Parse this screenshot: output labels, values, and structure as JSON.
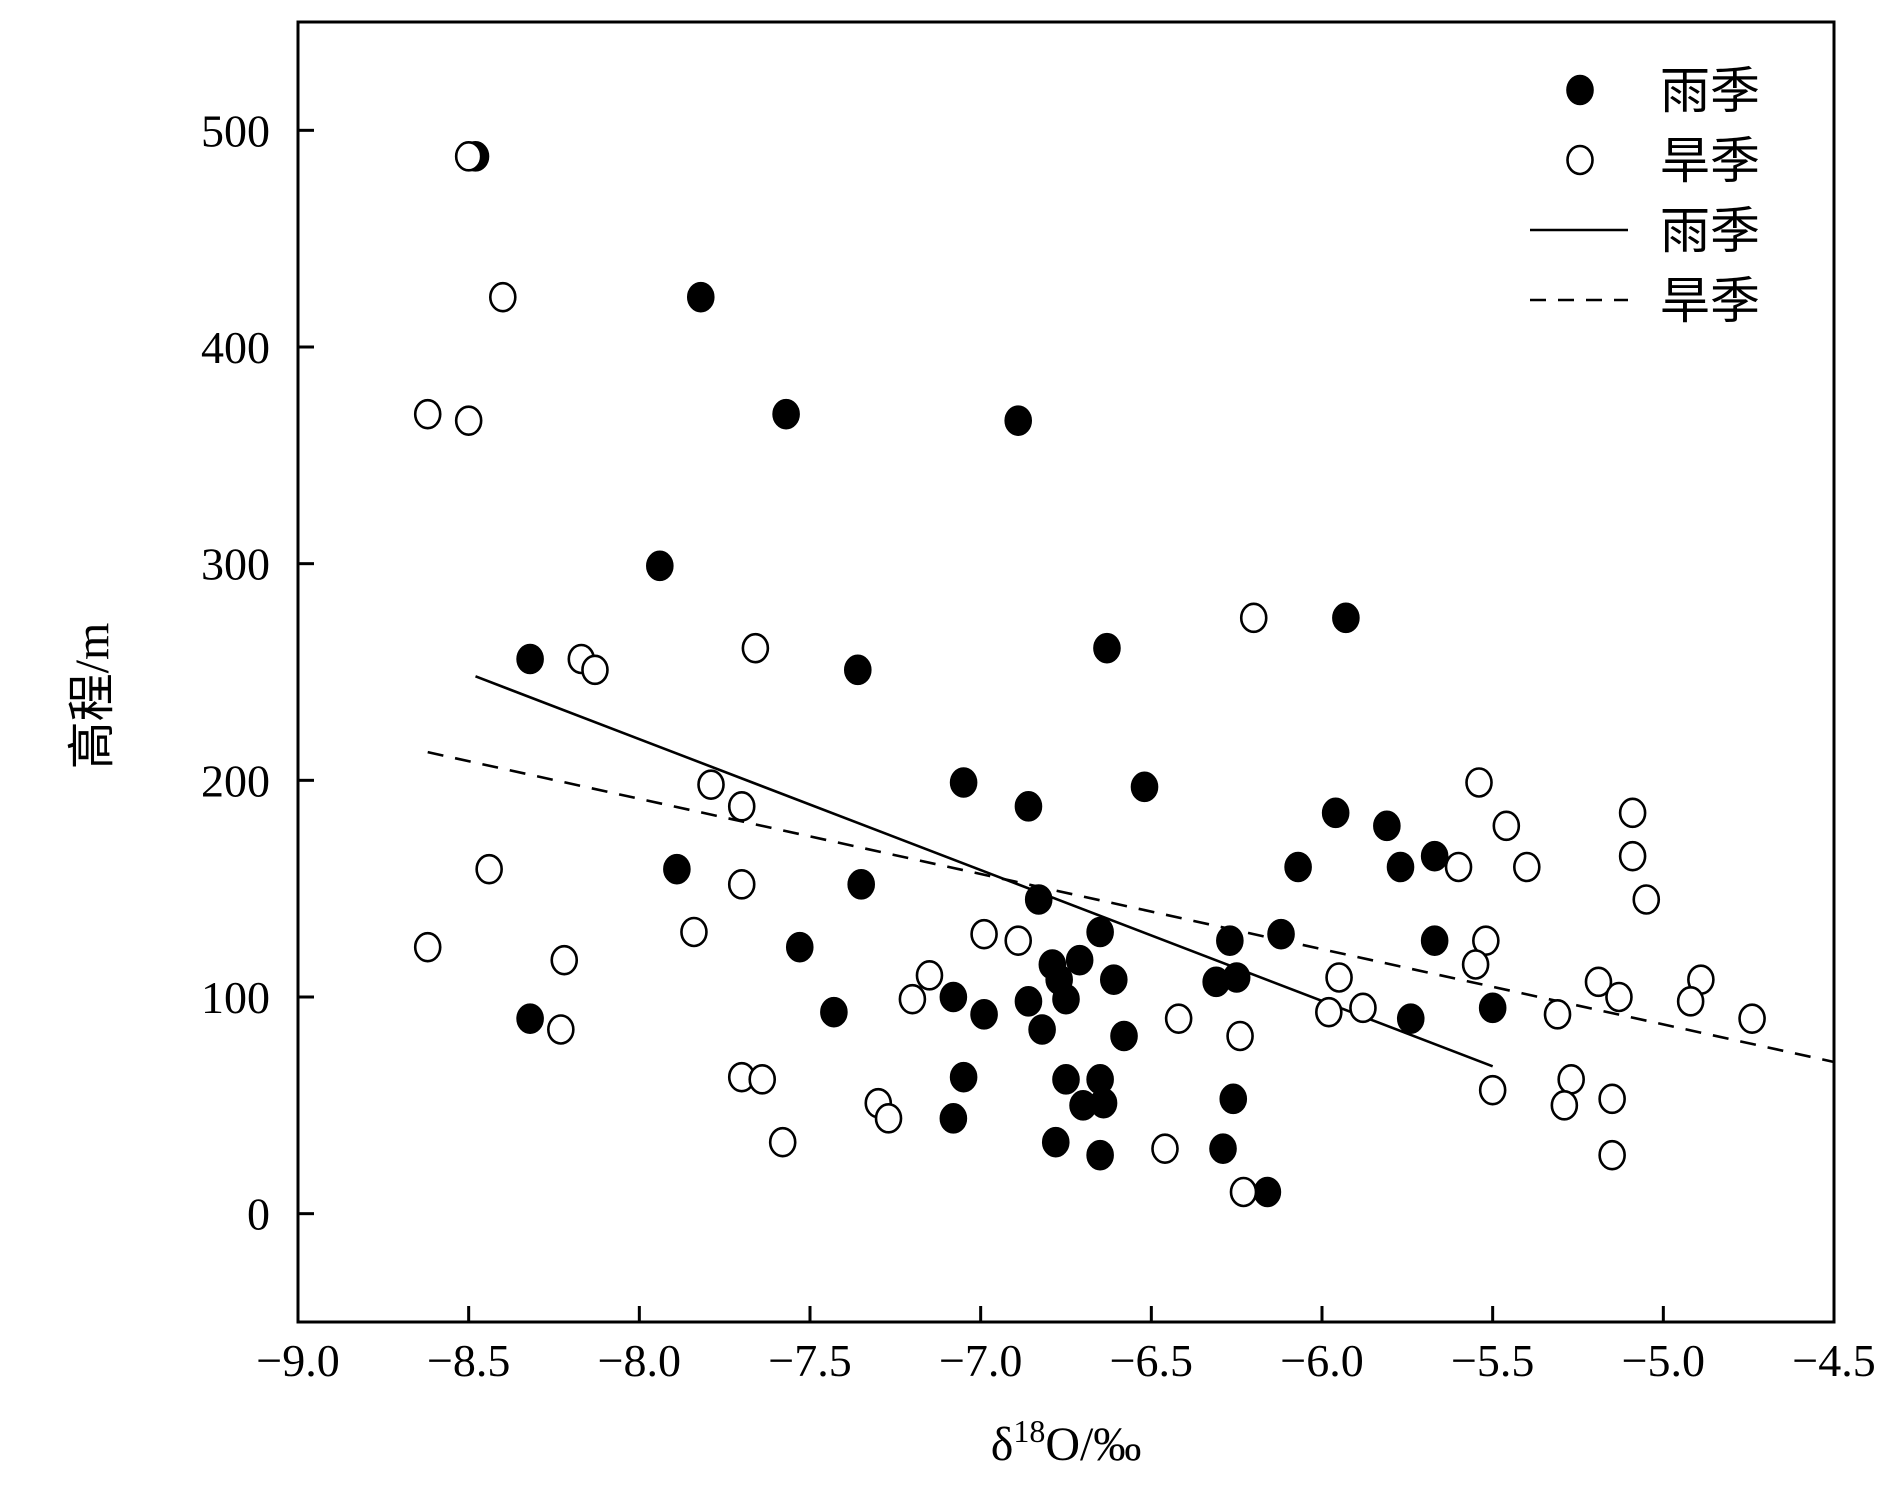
{
  "chart_data": {
    "type": "scatter",
    "xlabel_main": "δ",
    "xlabel_sup": "18",
    "xlabel_rest": "O/‰",
    "ylabel": "高程/m",
    "xlim": [
      -9.0,
      -4.5
    ],
    "ylim": [
      -50,
      550
    ],
    "xticks": [
      -9.0,
      -8.5,
      -8.0,
      -7.5,
      -7.0,
      -6.5,
      -6.0,
      -5.5,
      -5.0,
      -4.5
    ],
    "xtick_labels": [
      "−9.0",
      "−8.5",
      "−8.0",
      "−7.5",
      "−7.0",
      "−6.5",
      "−6.0",
      "−5.5",
      "−5.0",
      "−4.5"
    ],
    "yticks": [
      0,
      100,
      200,
      300,
      400,
      500
    ],
    "ytick_labels": [
      "0",
      "100",
      "200",
      "300",
      "400",
      "500"
    ],
    "legend_position": "top-right",
    "legend": [
      {
        "label": "雨季",
        "kind": "filled-marker"
      },
      {
        "label": "旱季",
        "kind": "open-marker"
      },
      {
        "label": "雨季",
        "kind": "solid-line"
      },
      {
        "label": "旱季",
        "kind": "dashed-line"
      }
    ],
    "series": [
      {
        "name": "雨季",
        "marker": "filled",
        "points": [
          [
            -8.48,
            488
          ],
          [
            -7.82,
            423
          ],
          [
            -7.57,
            369
          ],
          [
            -6.89,
            366
          ],
          [
            -7.94,
            299
          ],
          [
            -8.32,
            256
          ],
          [
            -7.36,
            251
          ],
          [
            -6.63,
            261
          ],
          [
            -5.93,
            275
          ],
          [
            -7.05,
            199
          ],
          [
            -6.86,
            188
          ],
          [
            -6.52,
            197
          ],
          [
            -5.96,
            185
          ],
          [
            -5.81,
            179
          ],
          [
            -5.67,
            165
          ],
          [
            -5.77,
            160
          ],
          [
            -6.07,
            160
          ],
          [
            -7.89,
            159
          ],
          [
            -7.35,
            152
          ],
          [
            -6.83,
            145
          ],
          [
            -6.12,
            129
          ],
          [
            -6.65,
            130
          ],
          [
            -6.27,
            126
          ],
          [
            -5.67,
            126
          ],
          [
            -7.53,
            123
          ],
          [
            -6.71,
            117
          ],
          [
            -6.79,
            115
          ],
          [
            -6.77,
            108
          ],
          [
            -6.61,
            108
          ],
          [
            -6.25,
            109
          ],
          [
            -6.31,
            107
          ],
          [
            -7.08,
            100
          ],
          [
            -6.86,
            98
          ],
          [
            -6.75,
            99
          ],
          [
            -6.99,
            92
          ],
          [
            -7.43,
            93
          ],
          [
            -5.74,
            90
          ],
          [
            -8.32,
            90
          ],
          [
            -5.5,
            95
          ],
          [
            -6.82,
            85
          ],
          [
            -6.58,
            82
          ],
          [
            -7.05,
            63
          ],
          [
            -6.75,
            62
          ],
          [
            -6.65,
            62
          ],
          [
            -6.7,
            50
          ],
          [
            -6.64,
            51
          ],
          [
            -6.26,
            53
          ],
          [
            -7.08,
            44
          ],
          [
            -6.78,
            33
          ],
          [
            -6.29,
            30
          ],
          [
            -6.65,
            27
          ],
          [
            -6.16,
            10
          ]
        ]
      },
      {
        "name": "旱季",
        "marker": "open",
        "points": [
          [
            -8.5,
            488
          ],
          [
            -8.4,
            423
          ],
          [
            -8.62,
            369
          ],
          [
            -8.5,
            366
          ],
          [
            -7.66,
            261
          ],
          [
            -8.17,
            256
          ],
          [
            -8.13,
            251
          ],
          [
            -6.2,
            275
          ],
          [
            -7.79,
            198
          ],
          [
            -7.7,
            188
          ],
          [
            -5.54,
            199
          ],
          [
            -5.09,
            185
          ],
          [
            -5.46,
            179
          ],
          [
            -5.09,
            165
          ],
          [
            -5.6,
            160
          ],
          [
            -5.4,
            160
          ],
          [
            -8.44,
            159
          ],
          [
            -7.7,
            152
          ],
          [
            -5.05,
            145
          ],
          [
            -7.84,
            130
          ],
          [
            -6.99,
            129
          ],
          [
            -6.89,
            126
          ],
          [
            -5.52,
            126
          ],
          [
            -8.62,
            123
          ],
          [
            -8.22,
            117
          ],
          [
            -5.55,
            115
          ],
          [
            -7.15,
            110
          ],
          [
            -5.95,
            109
          ],
          [
            -5.19,
            107
          ],
          [
            -4.89,
            108
          ],
          [
            -7.2,
            99
          ],
          [
            -5.13,
            100
          ],
          [
            -4.92,
            98
          ],
          [
            -5.88,
            95
          ],
          [
            -5.98,
            93
          ],
          [
            -5.31,
            92
          ],
          [
            -6.42,
            90
          ],
          [
            -4.74,
            90
          ],
          [
            -8.23,
            85
          ],
          [
            -6.24,
            82
          ],
          [
            -7.7,
            63
          ],
          [
            -7.64,
            62
          ],
          [
            -5.27,
            62
          ],
          [
            -5.5,
            57
          ],
          [
            -5.15,
            53
          ],
          [
            -7.3,
            51
          ],
          [
            -5.29,
            50
          ],
          [
            -7.27,
            44
          ],
          [
            -7.58,
            33
          ],
          [
            -6.46,
            30
          ],
          [
            -5.15,
            27
          ],
          [
            -6.23,
            10
          ]
        ]
      }
    ],
    "fit_lines": [
      {
        "name": "雨季",
        "style": "solid",
        "x": [
          -8.48,
          -5.5
        ],
        "y": [
          248,
          68
        ]
      },
      {
        "name": "旱季",
        "style": "dashed",
        "x": [
          -8.62,
          -4.5
        ],
        "y": [
          213,
          70
        ]
      }
    ]
  }
}
